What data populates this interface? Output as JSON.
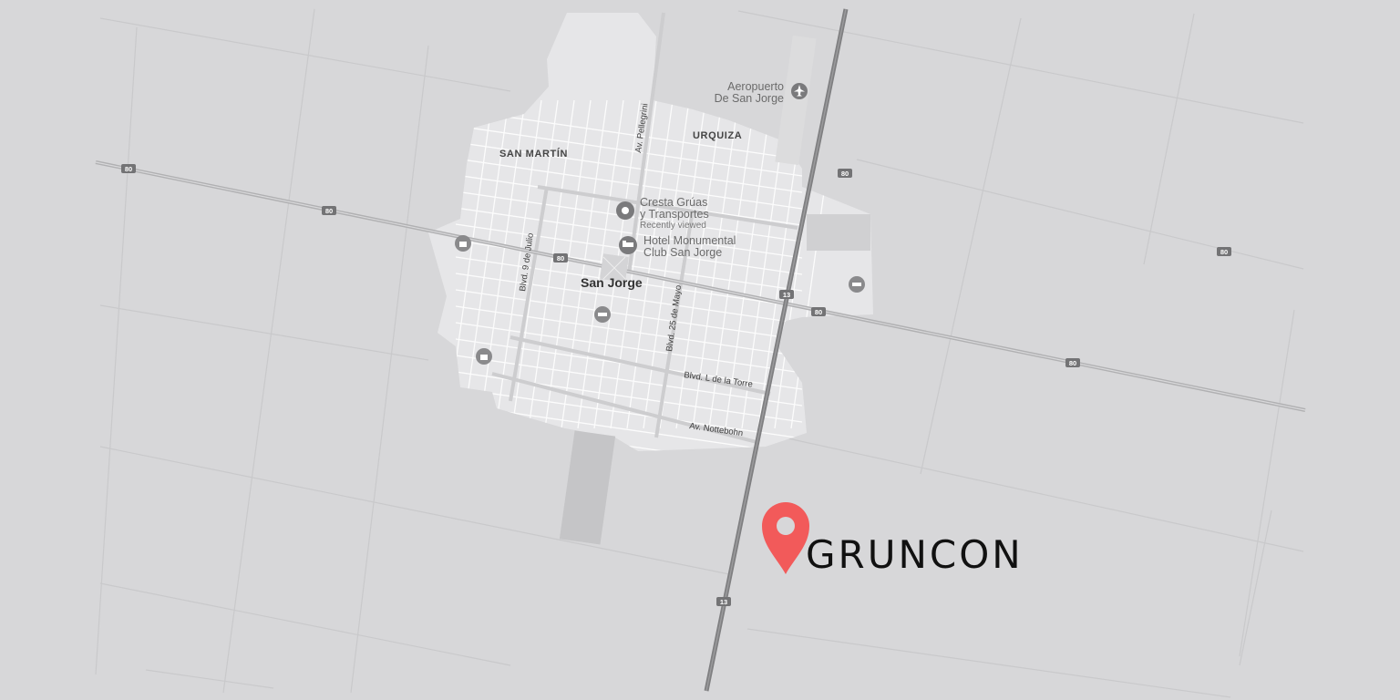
{
  "map": {
    "city_label": "San Jorge",
    "districts": {
      "san_martin": "SAN MARTÍN",
      "urquiza": "URQUIZA"
    },
    "streets": {
      "pellegrini": "Av. Pellegrini",
      "nueve_de_julio": "Blvd. 9 de Julio",
      "veinticinco_de_mayo": "Blvd. 25 de Mayo",
      "l_de_la_torre": "Blvd. L de la Torre",
      "nottebohn": "Av. Nottebohn"
    },
    "airport": {
      "line1": "Aeropuerto",
      "line2": "De San Jorge",
      "icon": "airplane-icon"
    },
    "places": {
      "cresta": {
        "line1": "Cresta Grúas",
        "line2": "y Transportes",
        "note": "Recently viewed",
        "icon": "place-icon"
      },
      "hotel": {
        "line1": "Hotel Monumental",
        "line2": "Club San Jorge",
        "icon": "hotel-icon"
      }
    },
    "route_numbers": {
      "r80": "80",
      "r13": "13"
    },
    "colors": {
      "background": "#d7d7d9",
      "urban": "#e6e6e8",
      "highway": "#7f7f81",
      "marker": "#f25a5a",
      "logo": "#111111"
    }
  },
  "brand": {
    "name": "GRUNCON",
    "marker_icon": "location-pin-icon"
  }
}
